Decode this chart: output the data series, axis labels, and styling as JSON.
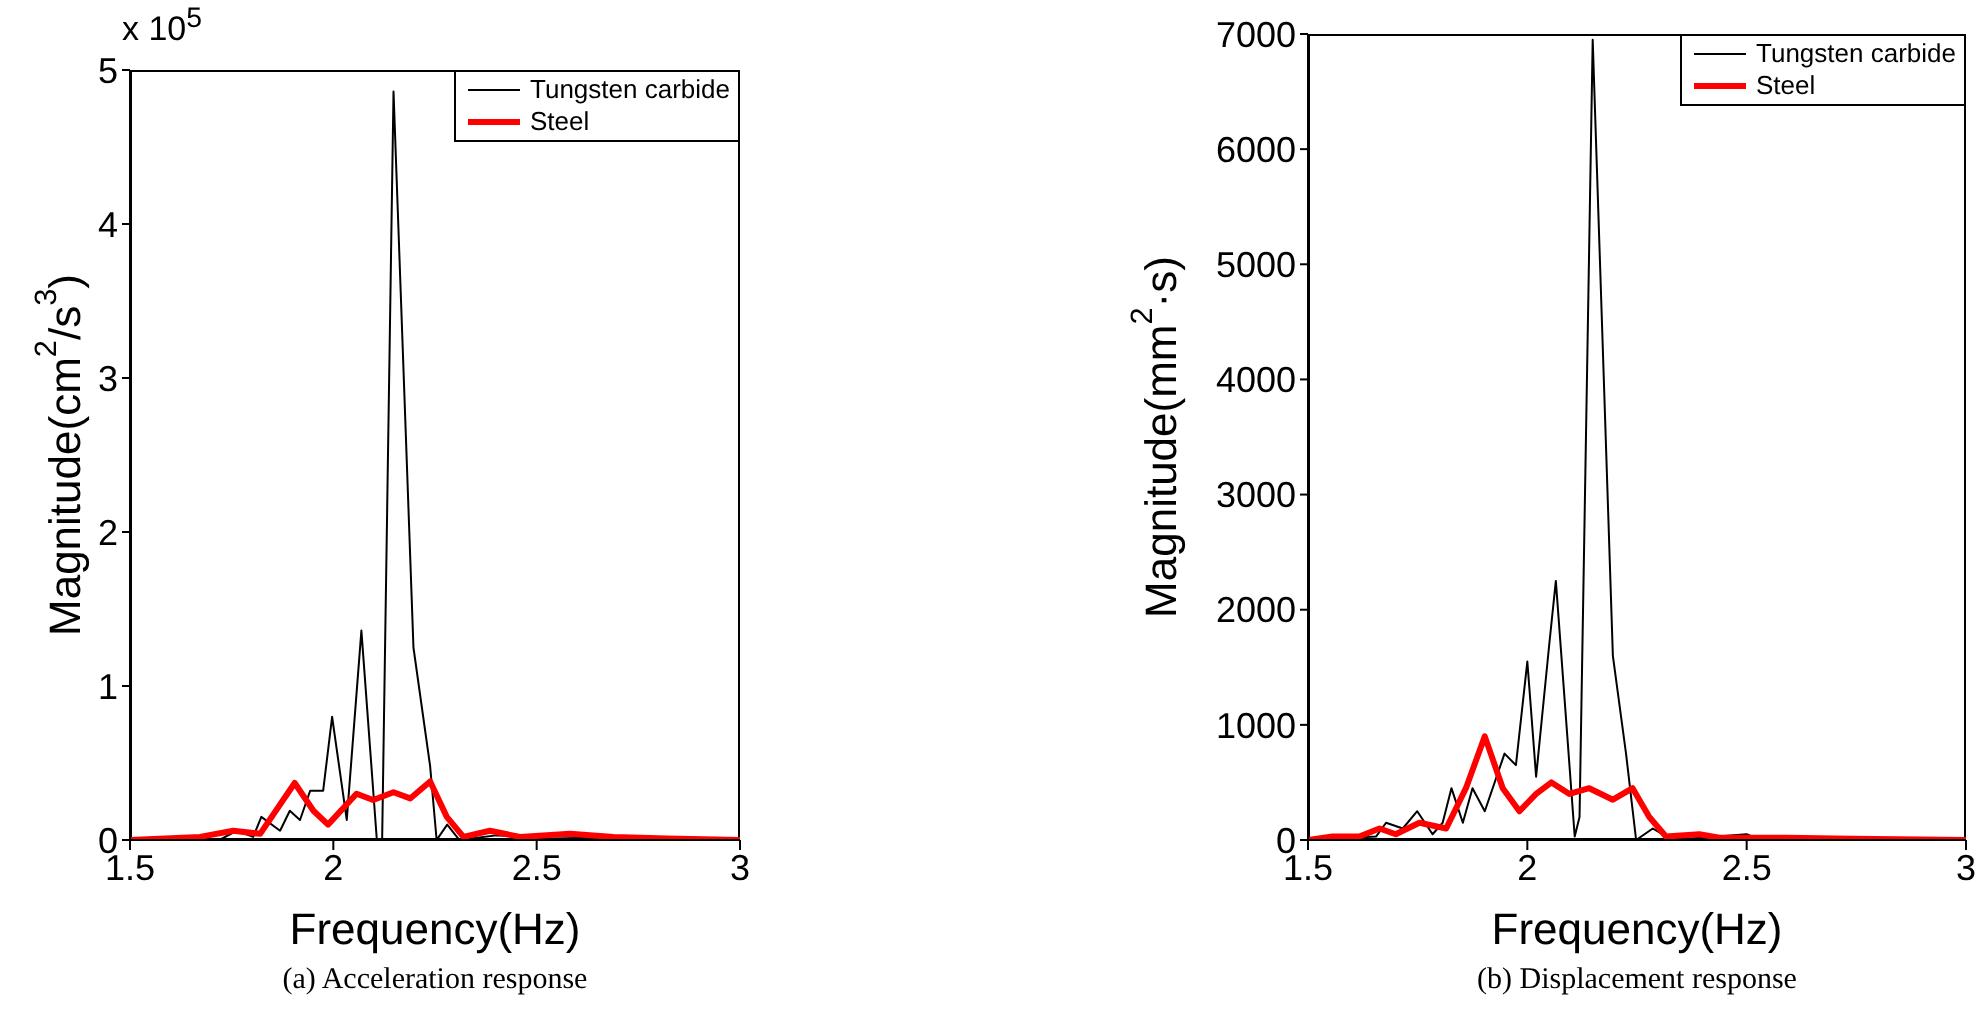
{
  "chart_data": [
    {
      "type": "line",
      "xlabel": "Frequency(Hz)",
      "ylabel": "Magnitude(cm$^{2}$/s$^{3}$)",
      "annotations": [
        "x 10$^{5}$",
        "(a) Acceleration response"
      ],
      "xlim": [
        1.5,
        3
      ],
      "xticks": [
        1.5,
        2,
        2.5,
        3
      ],
      "ylim": [
        0,
        5
      ],
      "yticks": [
        0,
        1,
        2,
        3,
        4,
        5
      ],
      "legend": "top right",
      "marker": "none",
      "line_style": "solid",
      "series": [
        {
          "name": "Tungsten carbide",
          "color": "#000000",
          "x": [
            1.5,
            1.72,
            1.762,
            1.803,
            1.823,
            1.869,
            1.893,
            1.918,
            1.943,
            1.975,
            1.997,
            2.033,
            2.069,
            2.107,
            2.12,
            2.148,
            2.197,
            2.238,
            2.254,
            2.28,
            2.31,
            2.4,
            2.6,
            3
          ],
          "values": [
            0,
            0,
            0.06,
            0.02,
            0.15,
            0.06,
            0.19,
            0.13,
            0.32,
            0.32,
            0.8,
            0.13,
            1.36,
            0,
            0,
            4.86,
            1.25,
            0.48,
            0,
            0.1,
            0,
            0.03,
            0.02,
            0
          ]
        },
        {
          "name": "Steel",
          "color": "#ff0000",
          "x": [
            1.5,
            1.672,
            1.754,
            1.82,
            1.905,
            1.951,
            1.987,
            2.057,
            2.098,
            2.148,
            2.189,
            2.238,
            2.279,
            2.32,
            2.385,
            2.459,
            2.582,
            2.689,
            2.82,
            3
          ],
          "values": [
            0,
            0.02,
            0.06,
            0.04,
            0.37,
            0.19,
            0.1,
            0.3,
            0.26,
            0.31,
            0.27,
            0.38,
            0.15,
            0.02,
            0.06,
            0.02,
            0.04,
            0.02,
            0.01,
            0
          ]
        }
      ]
    },
    {
      "type": "line",
      "xlabel": "Frequency(Hz)",
      "ylabel": "Magnitude(mm$^{2}$·s)",
      "annotations": [
        "(b) Displacement response"
      ],
      "xlim": [
        1.5,
        3
      ],
      "xticks": [
        1.5,
        2,
        2.5,
        3
      ],
      "ylim": [
        0,
        7000
      ],
      "yticks": [
        0,
        1000,
        2000,
        3000,
        4000,
        5000,
        6000,
        7000
      ],
      "legend": "top right",
      "marker": "none",
      "line_style": "solid",
      "series": [
        {
          "name": "Tungsten carbide",
          "color": "#000000",
          "x": [
            1.5,
            1.655,
            1.678,
            1.716,
            1.749,
            1.784,
            1.807,
            1.827,
            1.853,
            1.875,
            1.903,
            1.948,
            1.974,
            2.0,
            2.02,
            2.05,
            2.065,
            2.108,
            2.119,
            2.149,
            2.195,
            2.225,
            2.248,
            2.286,
            2.33,
            2.5,
            2.53,
            3
          ],
          "values": [
            0,
            30,
            150,
            100,
            250,
            50,
            150,
            450,
            150,
            450,
            250,
            750,
            650,
            1550,
            550,
            1700,
            2250,
            30,
            200,
            6950,
            1600,
            750,
            0,
            100,
            0,
            50,
            0,
            0
          ]
        },
        {
          "name": "Steel",
          "color": "#ff0000",
          "x": [
            1.5,
            1.556,
            1.617,
            1.663,
            1.7,
            1.754,
            1.815,
            1.86,
            1.903,
            1.944,
            1.982,
            2.02,
            2.055,
            2.096,
            2.141,
            2.195,
            2.24,
            2.278,
            2.316,
            2.392,
            2.438,
            2.59,
            2.74,
            3
          ],
          "values": [
            0,
            30,
            30,
            100,
            50,
            150,
            100,
            450,
            900,
            450,
            250,
            400,
            500,
            400,
            450,
            350,
            450,
            200,
            30,
            50,
            20,
            20,
            10,
            0
          ]
        }
      ]
    }
  ]
}
